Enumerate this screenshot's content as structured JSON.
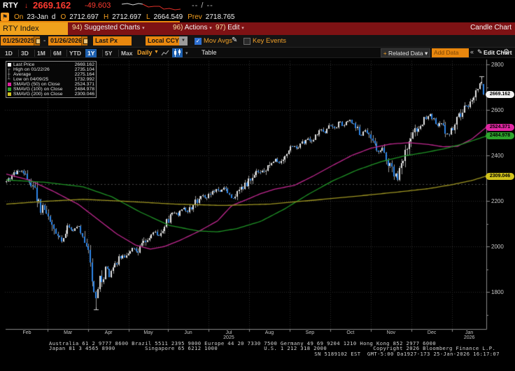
{
  "quote_bar": {
    "ticker": "RTY",
    "direction_arrow": "↓",
    "last": "2669.162",
    "change": "-49.603",
    "bid_ask": "-- / --"
  },
  "ohlc_bar": {
    "on_label": "On",
    "date": "23-Jan",
    "freq": "d",
    "o_label": "O",
    "open": "2712.697",
    "h_label": "H",
    "high": "2712.697",
    "l_label": "L",
    "low": "2664.549",
    "prev_label": "Prev",
    "prev": "2718.765"
  },
  "menu_bar": {
    "security": "RTY Index",
    "items": [
      {
        "num": "94)",
        "label": "Suggested Charts",
        "caret": "▾"
      },
      {
        "num": "96)",
        "label": "Actions",
        "caret": "▾"
      },
      {
        "num": "97)",
        "label": "Edit",
        "caret": "▾"
      }
    ],
    "right_label": "Candle Chart"
  },
  "toolbar": {
    "date_from": "01/25/2025",
    "dash": "-",
    "date_to": "01/26/2026",
    "px_type": "Last Px",
    "currency": "Local CCY",
    "ccy_caret": "▼",
    "mov_avgs_label": "Mov Avgs",
    "mov_avgs_check": "✓",
    "pencil": "✎",
    "key_events_label": "Key Events"
  },
  "period_bar": {
    "periods": [
      "1D",
      "3D",
      "1M",
      "6M",
      "YTD",
      "1Y",
      "5Y",
      "Max"
    ],
    "selected": "1Y",
    "frequency": "Daily",
    "freq_caret": "▼",
    "chart_type_caret": "▾",
    "table_label": "Table",
    "related_plus": "+",
    "related_label": " Related Data ▾",
    "add_data_placeholder": "Add Data",
    "collapse": "«",
    "pencil": "✎",
    "edit_chart": "Edit Chart",
    "gear": "⚙"
  },
  "legend": {
    "rows": [
      {
        "icon": "swatch",
        "color": "#ffffff",
        "label": "Last Price",
        "value": "2669.162"
      },
      {
        "icon": "high-marker",
        "mark": "┬",
        "label": "High on 01/22/26",
        "value": "2735.104"
      },
      {
        "icon": "avg-marker",
        "mark": "┼",
        "label": "Average",
        "value": "2275.164"
      },
      {
        "icon": "low-marker",
        "mark": "┴",
        "label": "Low on 04/09/25",
        "value": "1732.992"
      },
      {
        "icon": "swatch",
        "color": "#e020a0",
        "label": "SMAVG (50)  on Close",
        "value": "2524.371"
      },
      {
        "icon": "swatch",
        "color": "#2da52d",
        "label": "SMAVG (100)  on Close",
        "value": "2484.978"
      },
      {
        "icon": "swatch",
        "color": "#d4c41e",
        "label": "SMAVG (200)  on Close",
        "value": "2309.046"
      }
    ]
  },
  "chart_data": {
    "type": "candlestick",
    "title": "RTY Index 1Y Daily Candle Chart",
    "x_range": [
      "01/25/2025",
      "01/26/2026"
    ],
    "months": [
      "Feb",
      "Mar",
      "Apr",
      "May",
      "Jun",
      "Jul",
      "Aug",
      "Sep",
      "Oct",
      "Nov",
      "Dec",
      "Jan"
    ],
    "month_boundaries": [
      0.086,
      0.171,
      0.255,
      0.337,
      0.421,
      0.506,
      0.59,
      0.675,
      0.759,
      0.844,
      0.929
    ],
    "year_labels": [
      {
        "month_index": 5,
        "text": "2025"
      },
      {
        "month_index": 11,
        "text": "2026"
      }
    ],
    "y_ticks": [
      2800,
      2600,
      2400,
      2200,
      2000,
      1800
    ],
    "y_minor_ticks": [
      2700,
      2500,
      2300,
      2100,
      1900,
      1700
    ],
    "stats": {
      "last_price": 2669.162,
      "high": {
        "label": "High on 01/22/26",
        "value": 2735.104
      },
      "average": {
        "label": "Average",
        "value": 2275.164
      },
      "low": {
        "label": "Low on 04/09/25",
        "value": 1732.992
      }
    },
    "last_candle": {
      "open": 2712.697,
      "high": 2712.697,
      "low": 2664.549,
      "close": 2669.162
    },
    "candle_colors": {
      "up": "#e4e4e4",
      "down": "#2e86e8",
      "wick": "#9a9a9a"
    },
    "price_path": [
      [
        0.0,
        2285
      ],
      [
        0.016,
        2318
      ],
      [
        0.031,
        2330
      ],
      [
        0.045,
        2295
      ],
      [
        0.06,
        2252
      ],
      [
        0.071,
        2168
      ],
      [
        0.083,
        2152
      ],
      [
        0.095,
        2100
      ],
      [
        0.106,
        2042
      ],
      [
        0.118,
        2026
      ],
      [
        0.13,
        2088
      ],
      [
        0.141,
        2068
      ],
      [
        0.15,
        2086
      ],
      [
        0.162,
        2046
      ],
      [
        0.171,
        2012
      ],
      [
        0.178,
        1882
      ],
      [
        0.185,
        1792
      ],
      [
        0.19,
        1758
      ],
      [
        0.195,
        1885
      ],
      [
        0.201,
        1826
      ],
      [
        0.208,
        1918
      ],
      [
        0.216,
        1872
      ],
      [
        0.225,
        1906
      ],
      [
        0.235,
        1948
      ],
      [
        0.245,
        1958
      ],
      [
        0.255,
        1962
      ],
      [
        0.265,
        1994
      ],
      [
        0.276,
        1982
      ],
      [
        0.287,
        2024
      ],
      [
        0.299,
        2040
      ],
      [
        0.31,
        2064
      ],
      [
        0.321,
        2046
      ],
      [
        0.331,
        2088
      ],
      [
        0.341,
        2118
      ],
      [
        0.351,
        2154
      ],
      [
        0.36,
        2140
      ],
      [
        0.37,
        2170
      ],
      [
        0.38,
        2150
      ],
      [
        0.391,
        2184
      ],
      [
        0.401,
        2208
      ],
      [
        0.411,
        2228
      ],
      [
        0.42,
        2214
      ],
      [
        0.43,
        2236
      ],
      [
        0.44,
        2254
      ],
      [
        0.449,
        2240
      ],
      [
        0.458,
        2258
      ],
      [
        0.466,
        2236
      ],
      [
        0.475,
        2206
      ],
      [
        0.484,
        2234
      ],
      [
        0.494,
        2254
      ],
      [
        0.504,
        2278
      ],
      [
        0.515,
        2304
      ],
      [
        0.525,
        2330
      ],
      [
        0.534,
        2318
      ],
      [
        0.544,
        2344
      ],
      [
        0.554,
        2364
      ],
      [
        0.563,
        2384
      ],
      [
        0.571,
        2362
      ],
      [
        0.582,
        2394
      ],
      [
        0.592,
        2424
      ],
      [
        0.602,
        2440
      ],
      [
        0.611,
        2428
      ],
      [
        0.621,
        2456
      ],
      [
        0.631,
        2474
      ],
      [
        0.64,
        2464
      ],
      [
        0.65,
        2494
      ],
      [
        0.66,
        2514
      ],
      [
        0.669,
        2504
      ],
      [
        0.679,
        2534
      ],
      [
        0.688,
        2518
      ],
      [
        0.698,
        2546
      ],
      [
        0.707,
        2530
      ],
      [
        0.717,
        2558
      ],
      [
        0.726,
        2544
      ],
      [
        0.735,
        2520
      ],
      [
        0.743,
        2486
      ],
      [
        0.752,
        2506
      ],
      [
        0.761,
        2478
      ],
      [
        0.77,
        2446
      ],
      [
        0.778,
        2416
      ],
      [
        0.787,
        2434
      ],
      [
        0.796,
        2396
      ],
      [
        0.805,
        2350
      ],
      [
        0.813,
        2320
      ],
      [
        0.821,
        2300
      ],
      [
        0.828,
        2354
      ],
      [
        0.837,
        2408
      ],
      [
        0.846,
        2454
      ],
      [
        0.854,
        2498
      ],
      [
        0.863,
        2524
      ],
      [
        0.872,
        2546
      ],
      [
        0.881,
        2570
      ],
      [
        0.888,
        2584
      ],
      [
        0.895,
        2556
      ],
      [
        0.902,
        2536
      ],
      [
        0.911,
        2548
      ],
      [
        0.918,
        2514
      ],
      [
        0.926,
        2490
      ],
      [
        0.933,
        2512
      ],
      [
        0.942,
        2544
      ],
      [
        0.95,
        2576
      ],
      [
        0.959,
        2602
      ],
      [
        0.968,
        2628
      ],
      [
        0.977,
        2652
      ],
      [
        0.984,
        2682
      ],
      [
        0.99,
        2710
      ],
      [
        0.994,
        2726
      ],
      [
        0.997,
        2719
      ],
      [
        1.0,
        2669
      ]
    ],
    "smavg": [
      {
        "period": 50,
        "color": "#c02890",
        "last": 2524.371,
        "path": [
          [
            0,
            2318
          ],
          [
            0.05,
            2290
          ],
          [
            0.1,
            2240
          ],
          [
            0.15,
            2185
          ],
          [
            0.19,
            2120
          ],
          [
            0.23,
            2055
          ],
          [
            0.27,
            2005
          ],
          [
            0.3,
            1988
          ],
          [
            0.33,
            2000
          ],
          [
            0.36,
            2025
          ],
          [
            0.4,
            2065
          ],
          [
            0.44,
            2112
          ],
          [
            0.47,
            2180
          ],
          [
            0.5,
            2205
          ],
          [
            0.53,
            2232
          ],
          [
            0.56,
            2252
          ],
          [
            0.6,
            2268
          ],
          [
            0.64,
            2310
          ],
          [
            0.68,
            2356
          ],
          [
            0.72,
            2400
          ],
          [
            0.76,
            2432
          ],
          [
            0.8,
            2450
          ],
          [
            0.84,
            2456
          ],
          [
            0.88,
            2448
          ],
          [
            0.91,
            2438
          ],
          [
            0.94,
            2440
          ],
          [
            0.97,
            2472
          ],
          [
            1,
            2524
          ]
        ]
      },
      {
        "period": 100,
        "color": "#1f9326",
        "last": 2484.978,
        "path": [
          [
            0,
            2292
          ],
          [
            0.08,
            2282
          ],
          [
            0.16,
            2262
          ],
          [
            0.22,
            2218
          ],
          [
            0.28,
            2150
          ],
          [
            0.34,
            2092
          ],
          [
            0.4,
            2068
          ],
          [
            0.44,
            2064
          ],
          [
            0.48,
            2078
          ],
          [
            0.53,
            2110
          ],
          [
            0.58,
            2165
          ],
          [
            0.63,
            2230
          ],
          [
            0.68,
            2288
          ],
          [
            0.73,
            2335
          ],
          [
            0.78,
            2372
          ],
          [
            0.83,
            2398
          ],
          [
            0.87,
            2412
          ],
          [
            0.91,
            2428
          ],
          [
            0.95,
            2450
          ],
          [
            1,
            2485
          ]
        ]
      },
      {
        "period": 200,
        "color": "#9e9522",
        "last": 2309.046,
        "path": [
          [
            0,
            2186
          ],
          [
            0.08,
            2198
          ],
          [
            0.16,
            2207
          ],
          [
            0.25,
            2198
          ],
          [
            0.35,
            2186
          ],
          [
            0.45,
            2180
          ],
          [
            0.55,
            2186
          ],
          [
            0.65,
            2205
          ],
          [
            0.75,
            2225
          ],
          [
            0.82,
            2240
          ],
          [
            0.88,
            2254
          ],
          [
            0.93,
            2272
          ],
          [
            0.97,
            2290
          ],
          [
            1,
            2309
          ]
        ]
      }
    ],
    "axis_badges": {
      "last": {
        "value": "2669.162",
        "color": "#f2f2f2"
      },
      "sma50": {
        "value": "2524.371",
        "color": "#e026a2"
      },
      "sma100": {
        "value": "2484.978",
        "color": "#2da52d"
      },
      "sma200": {
        "value": "2309.046",
        "color": "#d2c31c"
      }
    }
  },
  "footer": {
    "line1": "Australia 61 2 9777 8600 Brazil 5511 2395 9000 Europe 44 20 7330 7500 Germany 49 69 9204 1210 Hong Kong 852 2977 6000",
    "line2": "Japan 81 3 4565 8900         Singapore 65 6212 1000              U.S. 1 212 318 2000              Copyright 2026 Bloomberg Finance L.P.",
    "line3": "SN 5189102 EST  GMT-5:00 Da1927-173 25-Jan-2026 16:17:07"
  }
}
